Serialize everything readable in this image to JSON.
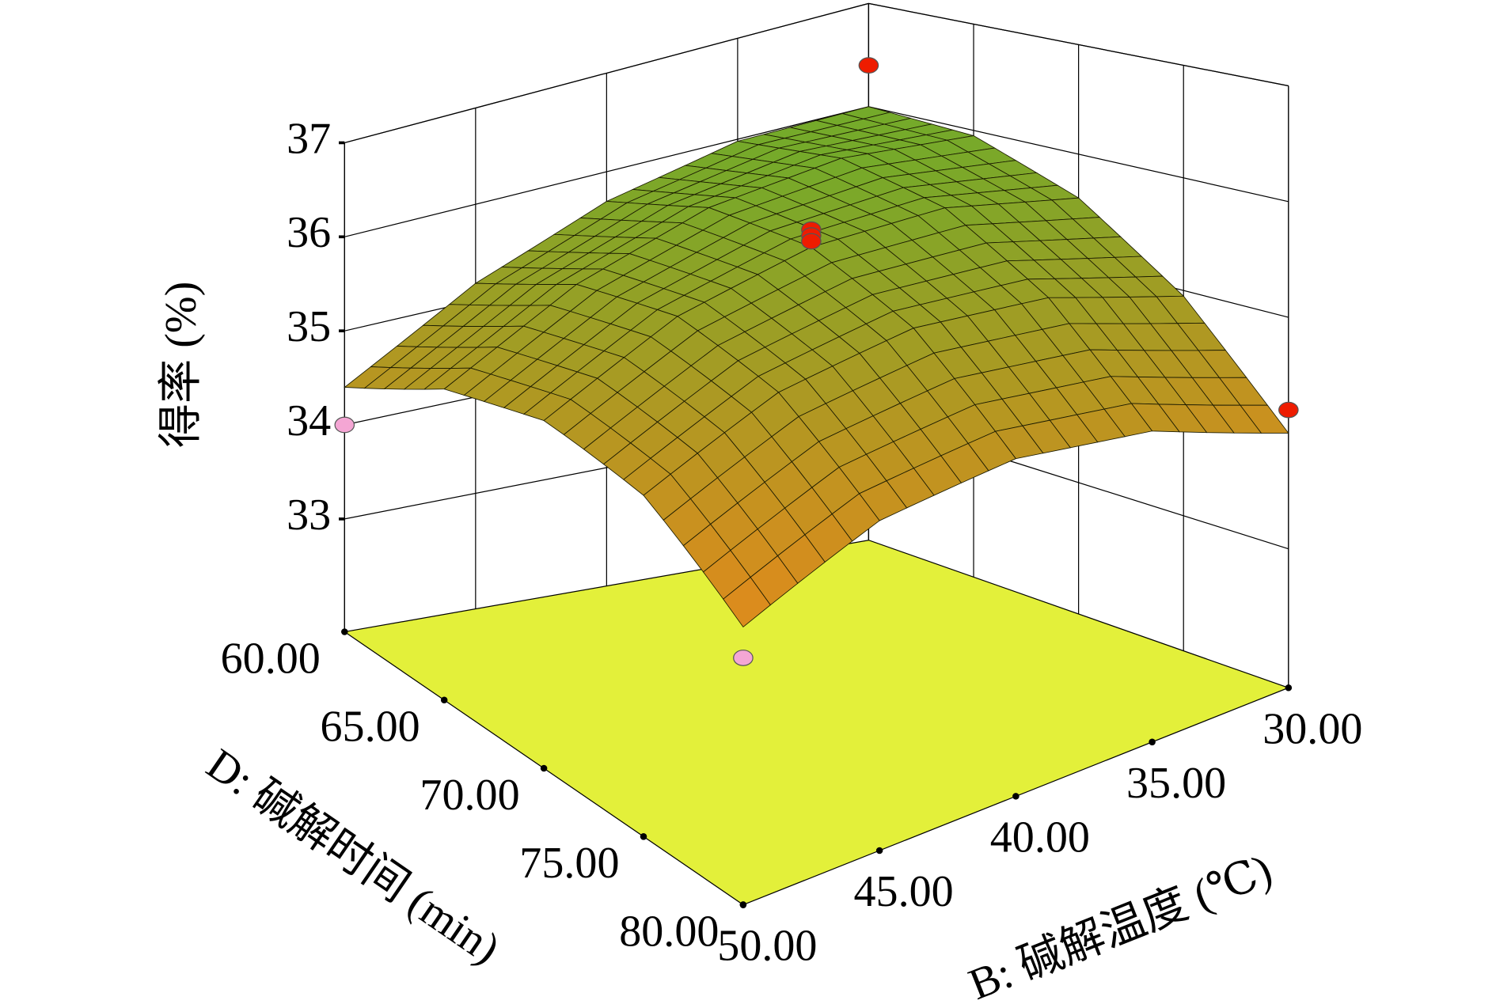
{
  "chart_data": {
    "type": "surface3d",
    "zlabel": "得率 (%)",
    "xlabel": "D: 碱解时间 (min)",
    "ylabel": "B: 碱解温度 (℃)",
    "xlim": [
      60,
      80
    ],
    "xticks": [
      {
        "value": 60,
        "label": "60.00"
      },
      {
        "value": 65,
        "label": "65.00"
      },
      {
        "value": 70,
        "label": "70.00"
      },
      {
        "value": 75,
        "label": "75.00"
      },
      {
        "value": 80,
        "label": "80.00"
      }
    ],
    "ylim": [
      30,
      50
    ],
    "yticks": [
      {
        "value": 30,
        "label": "30.00"
      },
      {
        "value": 35,
        "label": "35.00"
      },
      {
        "value": 40,
        "label": "40.00"
      },
      {
        "value": 45,
        "label": "45.00"
      },
      {
        "value": 50,
        "label": "50.00"
      }
    ],
    "zlim": [
      31.8,
      37
    ],
    "zticks": [
      33,
      34,
      35,
      36,
      37
    ],
    "surface": {
      "x": [
        60,
        65,
        70,
        75,
        80
      ],
      "y": [
        30,
        35,
        40,
        45,
        50
      ],
      "z": [
        [
          36.0,
          35.98,
          35.7,
          35.18,
          34.4
        ],
        [
          35.95,
          36.0,
          35.8,
          35.35,
          34.65
        ],
        [
          35.6,
          35.73,
          35.6,
          35.23,
          34.6
        ],
        [
          34.95,
          35.15,
          35.1,
          34.8,
          34.25
        ],
        [
          34.0,
          34.28,
          34.3,
          34.08,
          33.6
        ]
      ]
    },
    "surface_colors": [
      "#e08a1c",
      "#74aa2a"
    ],
    "floor_color": "#e3f03a",
    "points": {
      "x": [
        60,
        70,
        70,
        70,
        80,
        60,
        80
      ],
      "y": [
        30,
        40,
        40,
        40,
        30,
        50,
        50
      ],
      "z": [
        36.4,
        35.75,
        35.7,
        35.65,
        34.2,
        34.0,
        33.4
      ],
      "colors": [
        "#ee1c00",
        "#ee1c00",
        "#ee1c00",
        "#ee1c00",
        "#ee1c00",
        "#f4a6d4",
        "#f4a6d4"
      ]
    }
  }
}
